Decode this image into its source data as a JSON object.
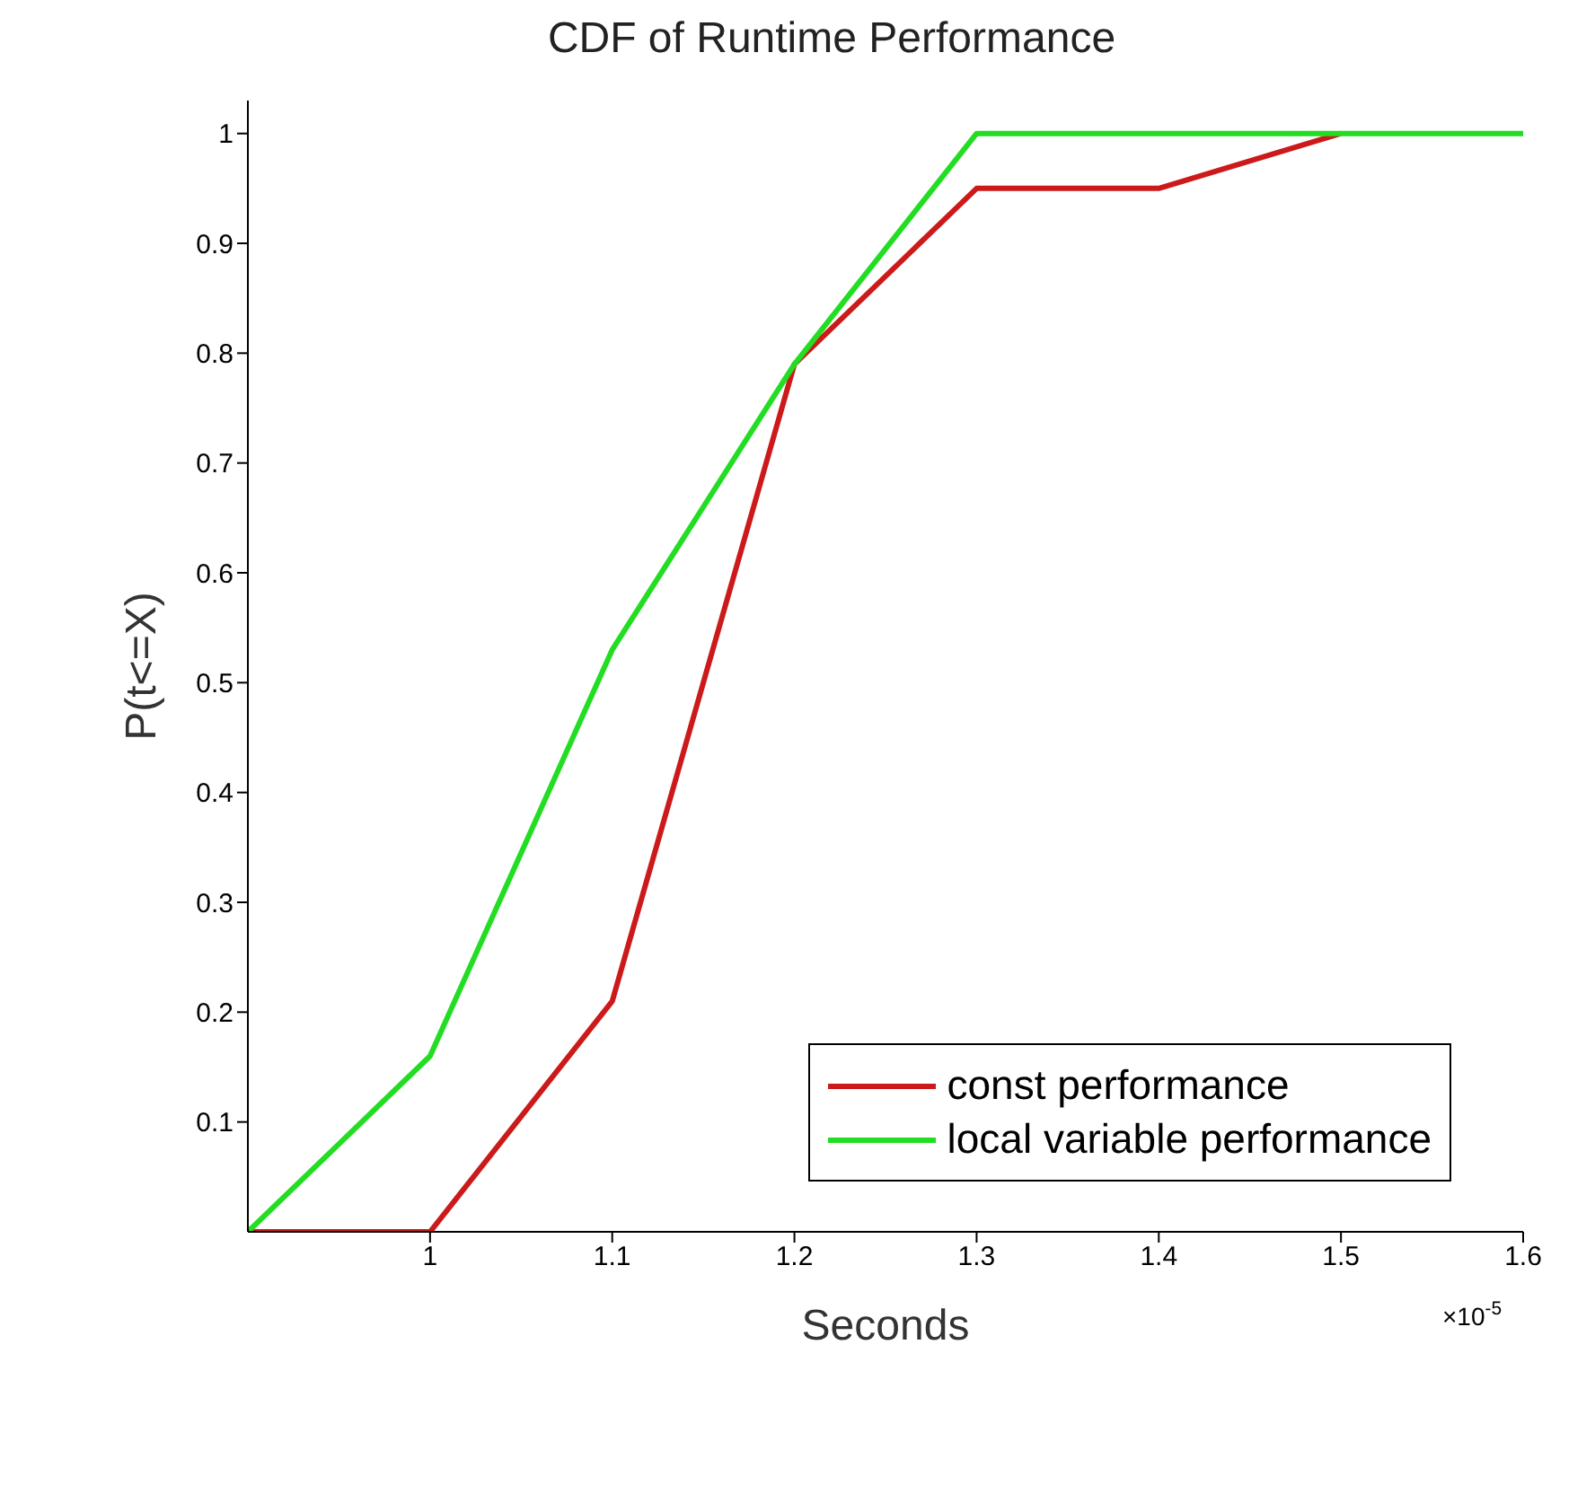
{
  "chart_data": {
    "type": "line",
    "title": "CDF of Runtime Performance",
    "xlabel": "Seconds",
    "ylabel": "P(t<=X)",
    "annotations": [
      "×10$^{-5}$"
    ],
    "x": [
      0.9,
      1.0,
      1.1,
      1.2,
      1.3,
      1.4,
      1.5,
      1.6
    ],
    "series": [
      {
        "name": "const performance",
        "color": "#cc1a1a",
        "values": [
          0,
          0,
          0.21,
          0.79,
          0.95,
          0.95,
          1,
          null
        ]
      },
      {
        "name": "local variable performance",
        "color": "#22dd22",
        "values": [
          0,
          0.16,
          0.53,
          0.79,
          1,
          1,
          1,
          1
        ]
      }
    ],
    "xlim": [
      0.9,
      1.6
    ],
    "xticks": [
      1,
      1.1,
      1.2,
      1.3,
      1.4,
      1.5,
      1.6
    ],
    "ylim": [
      0,
      1.03
    ],
    "yticks": [
      0.1,
      0.2,
      0.3,
      0.4,
      0.5,
      0.6,
      0.7,
      0.8,
      0.9,
      1
    ],
    "grid": false,
    "legend": "bottom right",
    "marker": "none",
    "line_style": "solid"
  }
}
